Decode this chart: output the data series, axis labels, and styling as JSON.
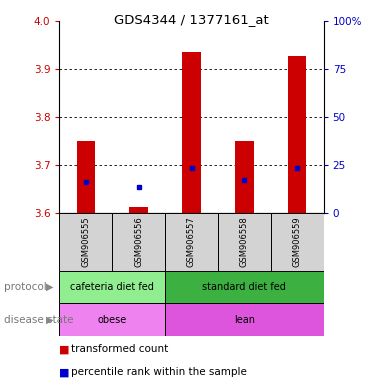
{
  "title": "GDS4344 / 1377161_at",
  "samples": [
    "GSM906555",
    "GSM906556",
    "GSM906557",
    "GSM906558",
    "GSM906559"
  ],
  "bar_bottoms": [
    3.6,
    3.6,
    3.6,
    3.6,
    3.6
  ],
  "bar_tops": [
    3.75,
    3.612,
    3.935,
    3.75,
    3.928
  ],
  "blue_y": [
    3.665,
    3.655,
    3.693,
    3.668,
    3.693
  ],
  "ylim": [
    3.6,
    4.0
  ],
  "yticks_left": [
    3.6,
    3.7,
    3.8,
    3.9,
    4.0
  ],
  "yticks_right_vals": [
    0,
    25,
    50,
    75,
    100
  ],
  "yticks_right_pos": [
    3.6,
    3.7,
    3.8,
    3.9,
    4.0
  ],
  "bar_color": "#cc0000",
  "blue_color": "#0000cc",
  "grid_color": "#000000",
  "protocol_labels": [
    "cafeteria diet fed",
    "standard diet fed"
  ],
  "protocol_bg1": "#90EE90",
  "protocol_bg2": "#3CB040",
  "disease_labels": [
    "obese",
    "lean"
  ],
  "disease_bg1": "#EE82EE",
  "disease_bg2": "#DD55DD",
  "legend_red_label": "transformed count",
  "legend_blue_label": "percentile rank within the sample",
  "row_label_protocol": "protocol",
  "row_label_disease": "disease state",
  "bar_width": 0.35,
  "right_ylabel_color": "#0000cc",
  "left_ylabel_color": "#cc0000",
  "left_label_color": "#888888"
}
